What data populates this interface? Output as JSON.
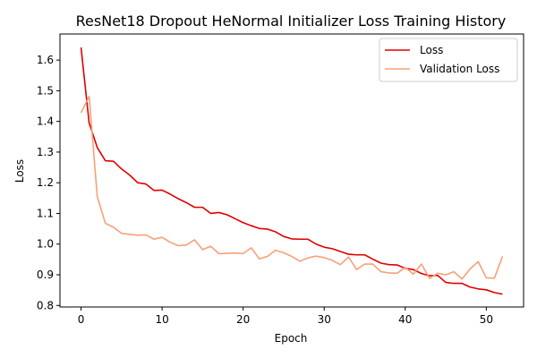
{
  "chart_data": {
    "type": "line",
    "title": "ResNet18 Dropout HeNormal Initializer Loss Training History",
    "xlabel": "Epoch",
    "ylabel": "Loss",
    "xlim": [
      -2.6,
      54.6
    ],
    "ylim": [
      0.795,
      1.685
    ],
    "xticks": [
      0,
      10,
      20,
      30,
      40,
      50
    ],
    "yticks": [
      0.8,
      0.9,
      1.0,
      1.1,
      1.2,
      1.3,
      1.4,
      1.5,
      1.6
    ],
    "xtick_labels": [
      "0",
      "10",
      "20",
      "30",
      "40",
      "50"
    ],
    "ytick_labels": [
      "0.8",
      "0.9",
      "1.0",
      "1.1",
      "1.2",
      "1.3",
      "1.4",
      "1.5",
      "1.6"
    ],
    "grid": false,
    "legend_position": "top-right",
    "x": [
      0,
      1,
      2,
      3,
      4,
      5,
      6,
      7,
      8,
      9,
      10,
      11,
      12,
      13,
      14,
      15,
      16,
      17,
      18,
      19,
      20,
      21,
      22,
      23,
      24,
      25,
      26,
      27,
      28,
      29,
      30,
      31,
      32,
      33,
      34,
      35,
      36,
      37,
      38,
      39,
      40,
      41,
      42,
      43,
      44,
      45,
      46,
      47,
      48,
      49,
      50,
      51,
      52
    ],
    "series": [
      {
        "name": "Loss",
        "color": "#e00000",
        "values": [
          1.641,
          1.395,
          1.315,
          1.272,
          1.27,
          1.245,
          1.225,
          1.2,
          1.196,
          1.175,
          1.176,
          1.163,
          1.148,
          1.135,
          1.12,
          1.12,
          1.1,
          1.103,
          1.096,
          1.083,
          1.07,
          1.06,
          1.051,
          1.049,
          1.04,
          1.025,
          1.017,
          1.016,
          1.016,
          1.0,
          0.99,
          0.985,
          0.976,
          0.967,
          0.965,
          0.965,
          0.951,
          0.938,
          0.933,
          0.932,
          0.921,
          0.917,
          0.904,
          0.897,
          0.898,
          0.875,
          0.872,
          0.872,
          0.86,
          0.854,
          0.851,
          0.842,
          0.837
        ]
      },
      {
        "name": "Validation Loss",
        "color": "#f7a07a",
        "values": [
          1.428,
          1.482,
          1.155,
          1.068,
          1.055,
          1.035,
          1.032,
          1.029,
          1.03,
          1.016,
          1.022,
          1.006,
          0.995,
          0.997,
          1.014,
          0.982,
          0.993,
          0.969,
          0.97,
          0.971,
          0.969,
          0.988,
          0.952,
          0.96,
          0.98,
          0.972,
          0.96,
          0.944,
          0.955,
          0.961,
          0.956,
          0.947,
          0.933,
          0.958,
          0.917,
          0.935,
          0.935,
          0.91,
          0.906,
          0.905,
          0.924,
          0.902,
          0.935,
          0.888,
          0.905,
          0.9,
          0.91,
          0.886,
          0.919,
          0.943,
          0.89,
          0.889,
          0.96
        ]
      }
    ]
  }
}
